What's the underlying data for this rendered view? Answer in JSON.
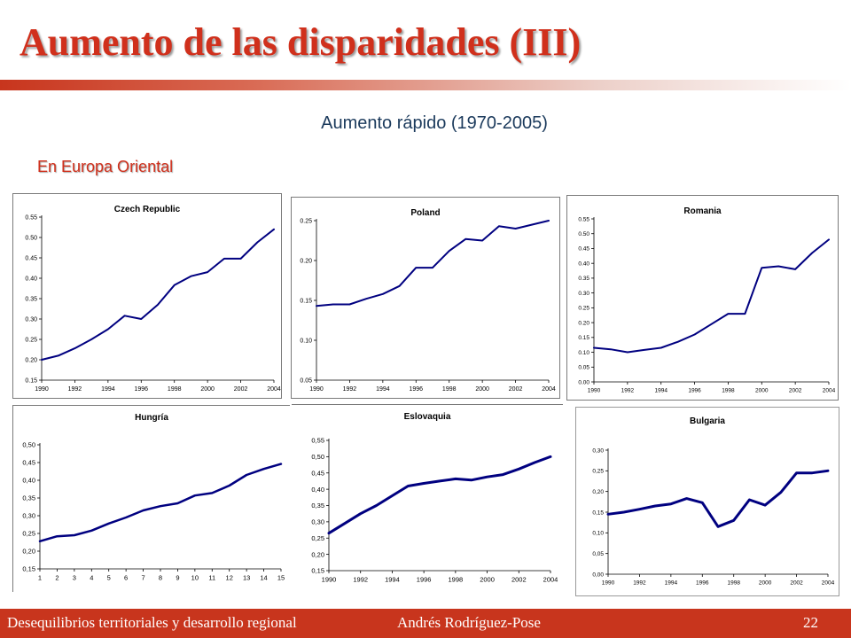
{
  "slide": {
    "title": "Aumento de las disparidades (III)",
    "subtitle": "Aumento rápido (1970-2005)",
    "region_label": "En Europa Oriental",
    "footer_course": "Desequilibrios territoriales y desarrollo regional",
    "footer_author": "Andrés  Rodríguez-Pose",
    "page_number": "22"
  },
  "colors": {
    "accent": "#c8351d",
    "series": "#000080"
  },
  "chart_data": [
    {
      "type": "line",
      "title": "Czech Republic",
      "x": [
        1990,
        1991,
        1992,
        1993,
        1994,
        1995,
        1996,
        1997,
        1998,
        1999,
        2000,
        2001,
        2002,
        2003,
        2004
      ],
      "values": [
        0.2,
        0.21,
        0.228,
        0.25,
        0.275,
        0.308,
        0.3,
        0.335,
        0.383,
        0.405,
        0.415,
        0.448,
        0.448,
        0.488,
        0.52
      ],
      "x_ticks": [
        "1990",
        "1992",
        "1994",
        "1996",
        "1998",
        "2000",
        "2002",
        "2004"
      ],
      "y_ticks": [
        "0.15",
        "0.20",
        "0.25",
        "0.30",
        "0.35",
        "0.40",
        "0.45",
        "0.50",
        "0.55"
      ],
      "ylim": [
        0.15,
        0.55
      ],
      "grid": false
    },
    {
      "type": "line",
      "title": "Poland",
      "x": [
        1990,
        1991,
        1992,
        1993,
        1994,
        1995,
        1996,
        1997,
        1998,
        1999,
        2000,
        2001,
        2002,
        2003,
        2004
      ],
      "values": [
        0.143,
        0.145,
        0.145,
        0.152,
        0.158,
        0.168,
        0.191,
        0.191,
        0.212,
        0.227,
        0.225,
        0.243,
        0.24,
        0.245,
        0.25
      ],
      "x_ticks": [
        "1990",
        "1992",
        "1994",
        "1996",
        "1998",
        "2000",
        "2002",
        "2004"
      ],
      "y_ticks": [
        "0.05",
        "0.10",
        "0.15",
        "0.20",
        "0.25"
      ],
      "ylim": [
        0.05,
        0.25
      ],
      "grid": false
    },
    {
      "type": "line",
      "title": "Romania",
      "x": [
        1990,
        1991,
        1992,
        1993,
        1994,
        1995,
        1996,
        1997,
        1998,
        1999,
        2000,
        2001,
        2002,
        2003,
        2004
      ],
      "values": [
        0.115,
        0.11,
        0.1,
        0.108,
        0.115,
        0.135,
        0.16,
        0.195,
        0.23,
        0.23,
        0.385,
        0.39,
        0.38,
        0.435,
        0.48
      ],
      "x_ticks": [
        "1990",
        "1992",
        "1994",
        "1996",
        "1998",
        "2000",
        "2002",
        "2004"
      ],
      "y_ticks": [
        "0.00",
        "0.05",
        "0.10",
        "0.15",
        "0.20",
        "0.25",
        "0.30",
        "0.35",
        "0.40",
        "0.45",
        "0.50",
        "0.55"
      ],
      "ylim": [
        0.0,
        0.55
      ],
      "grid": false
    },
    {
      "type": "line",
      "title": "Hungría",
      "x": [
        1,
        2,
        3,
        4,
        5,
        6,
        7,
        8,
        9,
        10,
        11,
        12,
        13,
        14,
        15
      ],
      "values": [
        0.228,
        0.242,
        0.245,
        0.258,
        0.278,
        0.295,
        0.315,
        0.327,
        0.335,
        0.357,
        0.364,
        0.385,
        0.415,
        0.432,
        0.446
      ],
      "x_ticks": [
        "1",
        "2",
        "3",
        "4",
        "5",
        "6",
        "7",
        "8",
        "9",
        "10",
        "11",
        "12",
        "13",
        "14",
        "15"
      ],
      "y_ticks": [
        "0,15",
        "0,20",
        "0,25",
        "0,30",
        "0,35",
        "0,40",
        "0,45",
        "0,50"
      ],
      "ylim": [
        0.15,
        0.5
      ],
      "grid": false
    },
    {
      "type": "line",
      "title": "Eslovaquia",
      "x": [
        1990,
        1991,
        1992,
        1993,
        1994,
        1995,
        1996,
        1997,
        1998,
        1999,
        2000,
        2001,
        2002,
        2003,
        2004
      ],
      "values": [
        0.265,
        0.295,
        0.325,
        0.35,
        0.38,
        0.41,
        0.418,
        0.425,
        0.432,
        0.428,
        0.438,
        0.445,
        0.462,
        0.482,
        0.5
      ],
      "x_ticks": [
        "1990",
        "1992",
        "1994",
        "1996",
        "1998",
        "2000",
        "2002",
        "2004"
      ],
      "y_ticks": [
        "0,15",
        "0,20",
        "0,25",
        "0,30",
        "0,35",
        "0,40",
        "0,45",
        "0,50",
        "0,55"
      ],
      "ylim": [
        0.15,
        0.55
      ],
      "grid": false
    },
    {
      "type": "line",
      "title": "Bulgaria",
      "x": [
        1990,
        1991,
        1992,
        1993,
        1994,
        1995,
        1996,
        1997,
        1998,
        1999,
        2000,
        2001,
        2002,
        2003,
        2004
      ],
      "values": [
        0.145,
        0.15,
        0.157,
        0.165,
        0.17,
        0.183,
        0.173,
        0.115,
        0.13,
        0.18,
        0.167,
        0.198,
        0.245,
        0.245,
        0.25
      ],
      "x_ticks": [
        "1990",
        "1992",
        "1994",
        "1996",
        "1998",
        "2000",
        "2002",
        "2004"
      ],
      "y_ticks": [
        "0,00",
        "0,05",
        "0,10",
        "0,15",
        "0,20",
        "0,25",
        "0,30"
      ],
      "ylim": [
        0.0,
        0.3
      ],
      "grid": false
    }
  ]
}
